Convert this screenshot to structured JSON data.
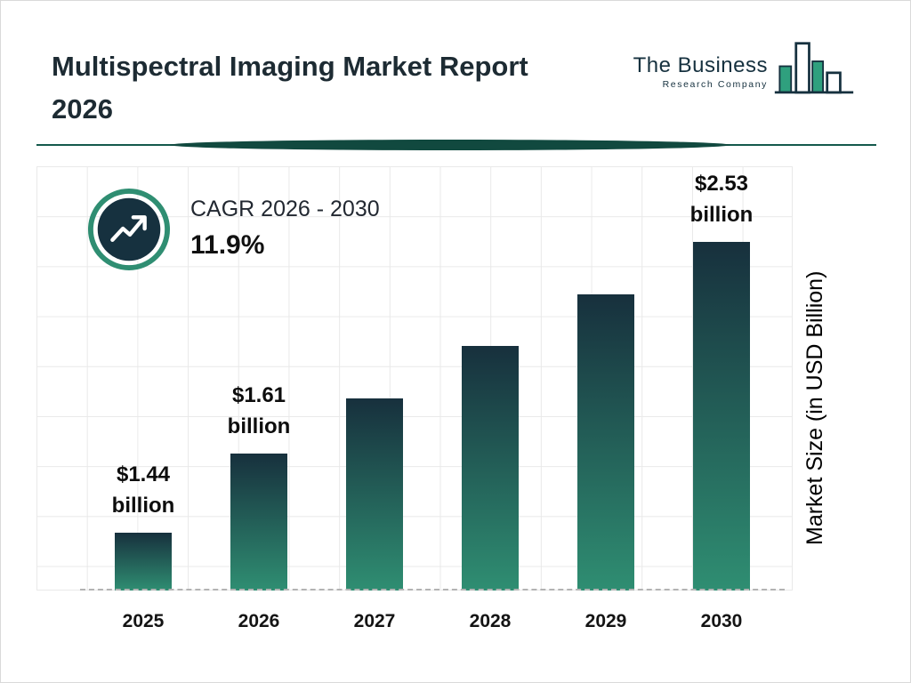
{
  "page": {
    "title": "Multispectral Imaging Market Report\n2026"
  },
  "logo": {
    "line1": "The Business",
    "line2": "Research Company"
  },
  "cagr": {
    "label": "CAGR 2026 - 2030",
    "value": "11.9%"
  },
  "chart_data": {
    "type": "bar",
    "title": "Multispectral Imaging Market Report 2026",
    "categories": [
      "2025",
      "2026",
      "2027",
      "2028",
      "2029",
      "2030"
    ],
    "values": [
      1.44,
      1.61,
      1.8,
      2.02,
      2.26,
      2.53
    ],
    "value_labels": [
      "$1.44\nbillion",
      "$1.61\nbillion",
      null,
      null,
      null,
      "$2.53\nbillion"
    ],
    "xlabel": "",
    "ylabel": "Market Size (in USD Billion)",
    "grid": true,
    "legend": false,
    "baseline_style": "dashed",
    "bar_color_top": "#17303d",
    "bar_color_bottom": "#2f8e72"
  },
  "colors": {
    "navy": "#16313f",
    "teal": "#2f8e72",
    "divider": "#14594c",
    "grid_line": "#e9e9e9",
    "title_text": "#1d2b33"
  }
}
